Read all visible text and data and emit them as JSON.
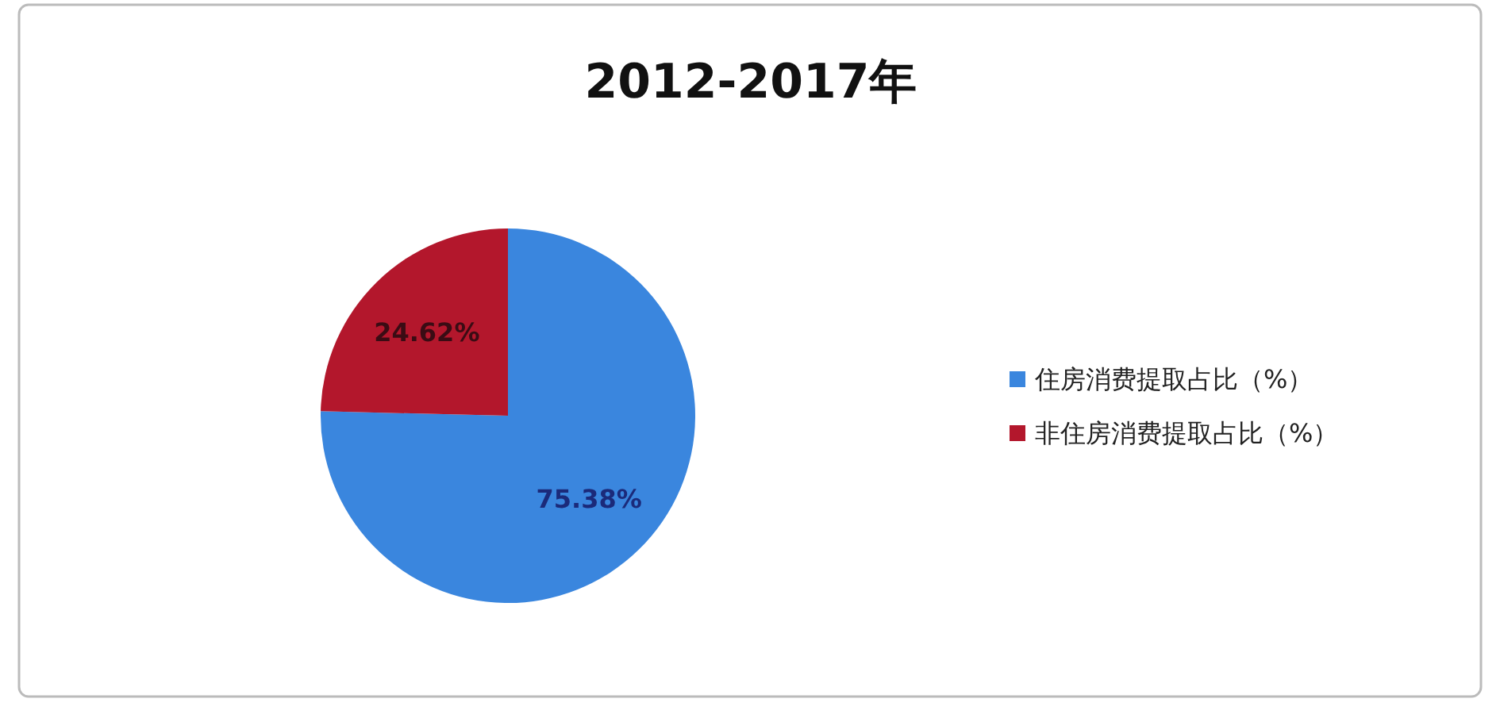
{
  "chart_data": {
    "type": "pie",
    "title": "2012-2017年",
    "categories": [
      "住房消费提取占比（%）",
      "非住房消费提取占比（%）"
    ],
    "values": [
      75.38,
      24.62
    ],
    "colors": [
      "#3a86de",
      "#b3172c"
    ],
    "value_labels": [
      "75.38%",
      "24.62%"
    ],
    "legend": "right"
  }
}
